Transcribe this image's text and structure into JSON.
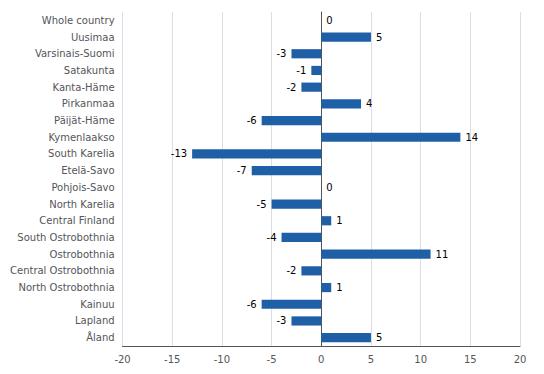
{
  "chart_data": {
    "type": "bar",
    "orientation": "horizontal",
    "categories": [
      "Whole country",
      "Uusimaa",
      "Varsinais-Suomi",
      "Satakunta",
      "Kanta-Häme",
      "Pirkanmaa",
      "Päijät-Häme",
      "Kymenlaakso",
      "South Karelia",
      "Etelä-Savo",
      "Pohjois-Savo",
      "North Karelia",
      "Central Finland",
      "South Ostrobothnia",
      "Ostrobothnia",
      "Central Ostrobothnia",
      "North Ostrobothnia",
      "Kainuu",
      "Lapland",
      "Åland"
    ],
    "values": [
      0,
      5,
      -3,
      -1,
      -2,
      4,
      -6,
      14,
      -13,
      -7,
      0,
      -5,
      1,
      -4,
      11,
      -2,
      1,
      -6,
      -3,
      5
    ],
    "color": "#1f5fa6",
    "xlim": [
      -20,
      20
    ],
    "xticks": [
      -20,
      -15,
      -10,
      -5,
      0,
      5,
      10,
      15,
      20
    ],
    "grid": true,
    "data_labels": true
  }
}
